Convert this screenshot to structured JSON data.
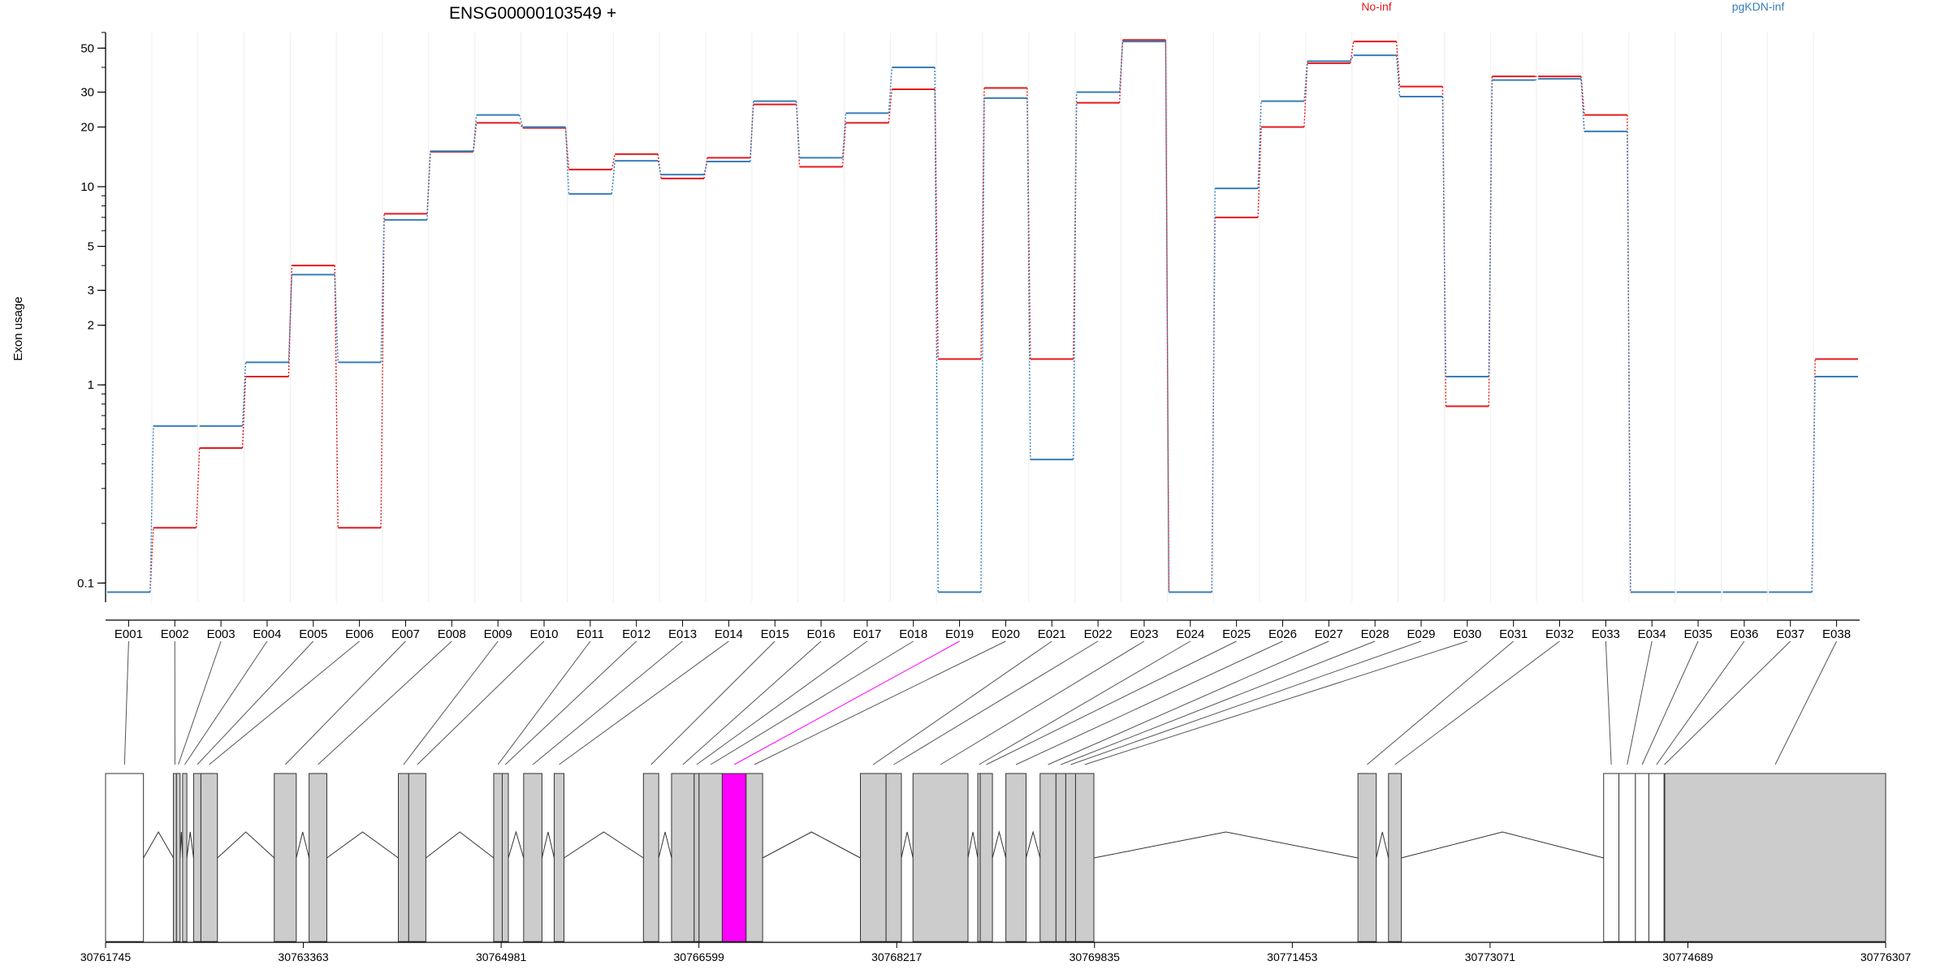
{
  "title": "ENSG00000103549 +",
  "chart_data": {
    "type": "line",
    "title": "ENSG00000103549 +",
    "ylabel": "Exon usage",
    "xlabel": "",
    "yscale": "log",
    "ylim": [
      0.08,
      60
    ],
    "y_ticks": [
      0.1,
      1,
      2,
      3,
      5,
      10,
      20,
      30,
      50
    ],
    "y_tick_labels": [
      "0.1",
      "1",
      "2",
      "3",
      "5",
      "10",
      "20",
      "30",
      "50"
    ],
    "categories": [
      "E001",
      "E002",
      "E003",
      "E004",
      "E005",
      "E006",
      "E007",
      "E008",
      "E009",
      "E010",
      "E011",
      "E012",
      "E013",
      "E014",
      "E015",
      "E016",
      "E017",
      "E018",
      "E019",
      "E020",
      "E021",
      "E022",
      "E023",
      "E024",
      "E025",
      "E026",
      "E027",
      "E028",
      "E029",
      "E030",
      "E031",
      "E032",
      "E033",
      "E034",
      "E035",
      "E036",
      "E037",
      "E038"
    ],
    "highlight_exon": "E019",
    "series": [
      {
        "name": "No-inf",
        "color": "#e41a1c",
        "values": [
          0.09,
          0.19,
          0.48,
          1.1,
          4.0,
          0.19,
          7.3,
          15.0,
          21.0,
          19.8,
          12.2,
          14.6,
          11.0,
          14.0,
          26.0,
          12.6,
          21.0,
          31.0,
          1.35,
          31.5,
          1.35,
          26.5,
          55.0,
          0.09,
          7.0,
          20.0,
          42.0,
          54.0,
          32.0,
          0.78,
          36.0,
          36.0,
          23.0,
          0.09,
          0.09,
          0.09,
          0.09,
          1.35
        ]
      },
      {
        "name": "pgKDN-inf",
        "color": "#377eb8",
        "values": [
          0.09,
          0.62,
          0.62,
          1.3,
          3.6,
          1.3,
          6.8,
          15.1,
          23.0,
          20.0,
          9.2,
          13.5,
          11.5,
          13.4,
          27.0,
          14.0,
          23.5,
          40.0,
          0.09,
          28.0,
          0.42,
          30.0,
          54.0,
          0.09,
          9.8,
          27.0,
          43.0,
          46.0,
          28.5,
          1.1,
          34.5,
          35.0,
          19.0,
          0.09,
          0.09,
          0.09,
          0.09,
          1.1
        ]
      }
    ],
    "legend_placement": "top",
    "gene_model": {
      "coord_ticks": [
        "30761745",
        "30763363",
        "30764981",
        "30766599",
        "30768217",
        "30769835",
        "30771453",
        "30773071",
        "30774689",
        "30776307"
      ],
      "coord_start": 30761745,
      "coord_end": 30776307,
      "exons": [
        {
          "id": "E001",
          "start": 30761745,
          "end": 30762055,
          "fill": "#ffffff"
        },
        {
          "id": "E002",
          "start": 30762300,
          "end": 30762325,
          "fill": "#cccccc"
        },
        {
          "id": "E003",
          "start": 30762325,
          "end": 30762355,
          "fill": "#cccccc"
        },
        {
          "id": "E004",
          "start": 30762375,
          "end": 30762410,
          "fill": "#cccccc"
        },
        {
          "id": "E005",
          "start": 30762465,
          "end": 30762525,
          "fill": "#cccccc"
        },
        {
          "id": "E006",
          "start": 30762525,
          "end": 30762660,
          "fill": "#cccccc"
        },
        {
          "id": "E007",
          "start": 30763125,
          "end": 30763305,
          "fill": "#cccccc"
        },
        {
          "id": "E008",
          "start": 30763410,
          "end": 30763555,
          "fill": "#cccccc"
        },
        {
          "id": "E009",
          "start": 30764140,
          "end": 30764225,
          "fill": "#cccccc"
        },
        {
          "id": "E010",
          "start": 30764225,
          "end": 30764365,
          "fill": "#cccccc"
        },
        {
          "id": "E011",
          "start": 30764920,
          "end": 30764990,
          "fill": "#cccccc"
        },
        {
          "id": "E012",
          "start": 30764990,
          "end": 30765040,
          "fill": "#cccccc"
        },
        {
          "id": "E013",
          "start": 30765165,
          "end": 30765315,
          "fill": "#cccccc"
        },
        {
          "id": "E014",
          "start": 30765415,
          "end": 30765495,
          "fill": "#cccccc"
        },
        {
          "id": "E015",
          "start": 30766145,
          "end": 30766270,
          "fill": "#cccccc"
        },
        {
          "id": "E016",
          "start": 30766375,
          "end": 30766560,
          "fill": "#cccccc"
        },
        {
          "id": "E017",
          "start": 30766560,
          "end": 30766600,
          "fill": "#cccccc"
        },
        {
          "id": "E018",
          "start": 30766600,
          "end": 30766790,
          "fill": "#cccccc"
        },
        {
          "id": "E019",
          "start": 30766790,
          "end": 30766985,
          "fill": "#ff00ff"
        },
        {
          "id": "E020",
          "start": 30766985,
          "end": 30767120,
          "fill": "#cccccc"
        },
        {
          "id": "E021",
          "start": 30767920,
          "end": 30768130,
          "fill": "#cccccc"
        },
        {
          "id": "E022",
          "start": 30768130,
          "end": 30768255,
          "fill": "#cccccc"
        },
        {
          "id": "E023",
          "start": 30768350,
          "end": 30768800,
          "fill": "#cccccc"
        },
        {
          "id": "E024",
          "start": 30768880,
          "end": 30768900,
          "fill": "#cccccc"
        },
        {
          "id": "E025",
          "start": 30768900,
          "end": 30769000,
          "fill": "#cccccc"
        },
        {
          "id": "E026",
          "start": 30769110,
          "end": 30769275,
          "fill": "#cccccc"
        },
        {
          "id": "E027",
          "start": 30769390,
          "end": 30769520,
          "fill": "#cccccc"
        },
        {
          "id": "E028",
          "start": 30769520,
          "end": 30769600,
          "fill": "#cccccc"
        },
        {
          "id": "E029",
          "start": 30769600,
          "end": 30769680,
          "fill": "#cccccc"
        },
        {
          "id": "E030",
          "start": 30769680,
          "end": 30769830,
          "fill": "#cccccc"
        },
        {
          "id": "E031",
          "start": 30771990,
          "end": 30772140,
          "fill": "#cccccc"
        },
        {
          "id": "E032",
          "start": 30772240,
          "end": 30772345,
          "fill": "#cccccc"
        },
        {
          "id": "E033",
          "start": 30774000,
          "end": 30774125,
          "fill": "#ffffff"
        },
        {
          "id": "E034",
          "start": 30774125,
          "end": 30774260,
          "fill": "#ffffff"
        },
        {
          "id": "E035",
          "start": 30774260,
          "end": 30774370,
          "fill": "#ffffff"
        },
        {
          "id": "E036",
          "start": 30774370,
          "end": 30774495,
          "fill": "#ffffff"
        },
        {
          "id": "E037",
          "start": 30774495,
          "end": 30774500,
          "fill": "#ffffff"
        },
        {
          "id": "E038",
          "start": 30774500,
          "end": 30776307,
          "fill": "#cccccc"
        }
      ]
    }
  }
}
